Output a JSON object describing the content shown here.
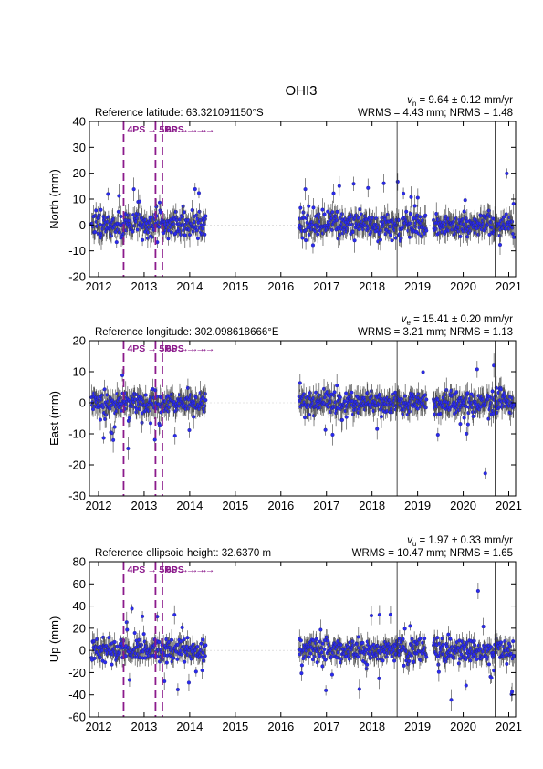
{
  "chart_data": {
    "type": "scatter",
    "title": "OHI3",
    "x_ticks": [
      2012,
      2013,
      2014,
      2015,
      2016,
      2017,
      2018,
      2019,
      2020,
      2021
    ],
    "x_range": [
      2011.8,
      2021.15
    ],
    "data_gap": [
      2014.35,
      2016.4
    ],
    "events": [
      {
        "label": "4PS",
        "x": 2012.55
      },
      {
        "label": "5PS",
        "x": 2013.25
      },
      {
        "label": "6PS",
        "x": 2013.4
      }
    ],
    "marker_color": "#2a2aee",
    "errorbar_color": "#555555",
    "event_color": "#8b1a8b",
    "panels": [
      {
        "id": "north",
        "ylabel": "North (mm)",
        "ylim": [
          -20,
          40
        ],
        "yticks": [
          -20,
          -10,
          0,
          10,
          20,
          30,
          40
        ],
        "reference": "Reference latitude: 63.321091150°S",
        "velocity_sym": "v",
        "velocity_sub": "n",
        "velocity_text": " = 9.64 ± 0.12 mm/yr",
        "stats": "WRMS = 4.43 mm; NRMS = 1.48",
        "noise": 4.4,
        "error": 3.2,
        "spike_bias": 1
      },
      {
        "id": "east",
        "ylabel": "East (mm)",
        "ylim": [
          -30,
          20
        ],
        "yticks": [
          -30,
          -20,
          -10,
          0,
          10,
          20
        ],
        "reference": "Reference longitude: 302.098618666°E",
        "velocity_sym": "v",
        "velocity_sub": "e",
        "velocity_text": " = 15.41 ± 0.20 mm/yr",
        "stats": "WRMS = 3.21 mm; NRMS = 1.13",
        "noise": 3.2,
        "error": 2.8,
        "spike_bias": -1
      },
      {
        "id": "up",
        "ylabel": "Up (mm)",
        "ylim": [
          -60,
          80
        ],
        "yticks": [
          -60,
          -40,
          -20,
          0,
          20,
          40,
          60,
          80
        ],
        "reference": "Reference ellipsoid height: 32.6370 m",
        "velocity_sym": "v",
        "velocity_sub": "u",
        "velocity_text": " = 1.97 ± 0.33 mm/yr",
        "stats": "WRMS = 10.47 mm; NRMS = 1.65",
        "noise": 10.5,
        "error": 6.5,
        "spike_bias": 0
      }
    ]
  }
}
